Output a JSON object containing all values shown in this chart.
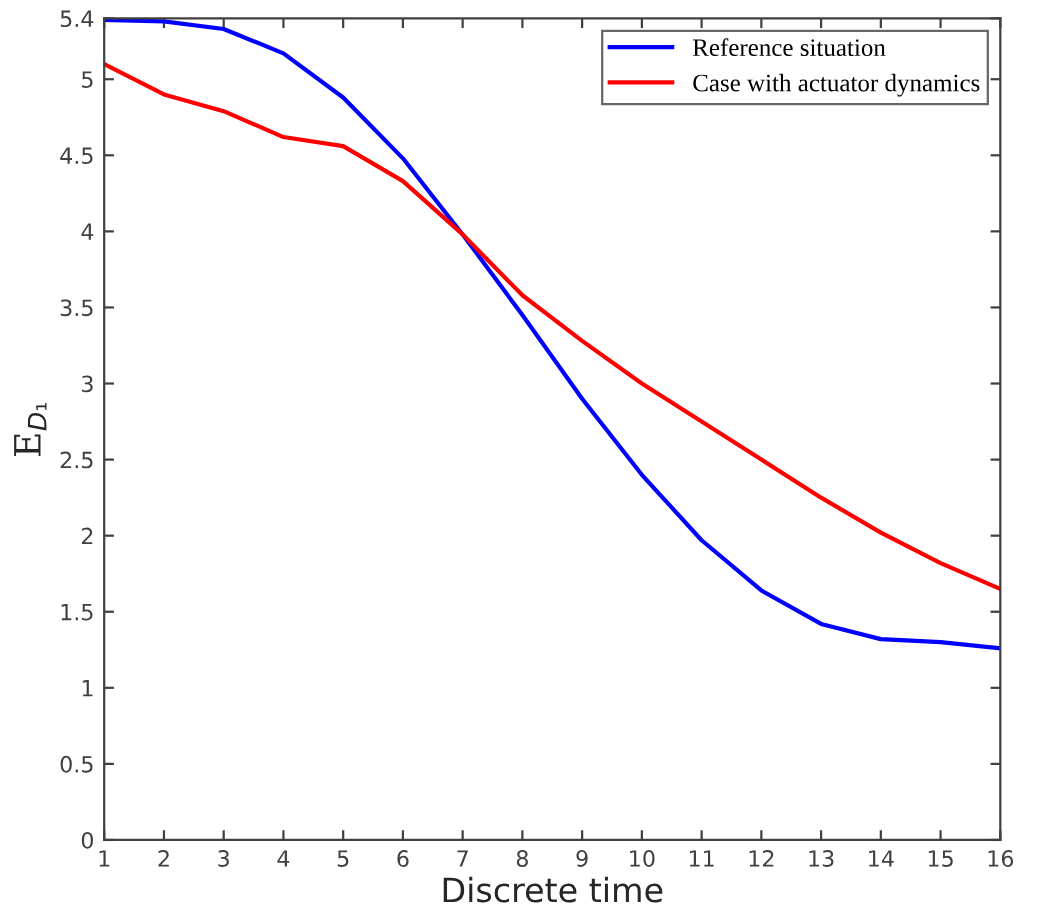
{
  "chart_data": {
    "type": "line",
    "xlabel": "Discrete time",
    "ylabel": "E$_{D₁}$",
    "x": [
      1,
      2,
      3,
      4,
      5,
      6,
      7,
      8,
      9,
      10,
      11,
      12,
      13,
      14,
      15,
      16
    ],
    "series": [
      {
        "name": "Reference situation",
        "color": "#0000ff",
        "values": [
          5.39,
          5.38,
          5.33,
          5.17,
          4.88,
          4.48,
          3.98,
          3.45,
          2.9,
          2.4,
          1.97,
          1.64,
          1.42,
          1.32,
          1.3,
          1.26
        ]
      },
      {
        "name": "Case with actuator dynamics",
        "color": "#ff0000",
        "values": [
          5.1,
          4.9,
          4.79,
          4.62,
          4.56,
          4.33,
          3.98,
          3.58,
          3.28,
          3.0,
          2.75,
          2.5,
          2.25,
          2.02,
          1.82,
          1.65
        ]
      }
    ],
    "xlim": [
      1,
      16
    ],
    "xticks": [
      1,
      2,
      3,
      4,
      5,
      6,
      7,
      8,
      9,
      10,
      11,
      12,
      13,
      14,
      15,
      16
    ],
    "ylim": [
      0,
      5.4
    ],
    "yticks": [
      0,
      0.5,
      1,
      1.5,
      2,
      2.5,
      3,
      3.5,
      4,
      4.5,
      5,
      5.4
    ],
    "grid": false,
    "legend": "top right",
    "marker": "none",
    "line_style": "solid"
  }
}
